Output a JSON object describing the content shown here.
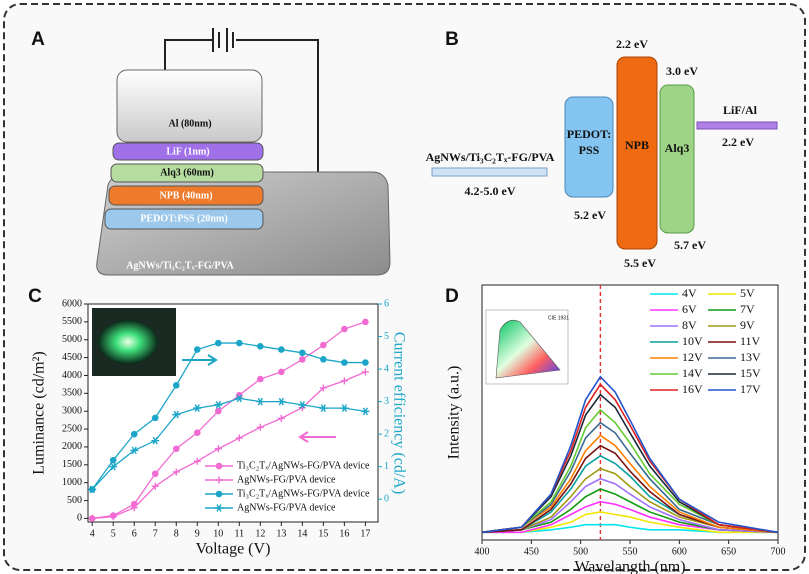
{
  "device_stack": {
    "panel": "A",
    "layers": [
      "Al (80nm)",
      "LiF (1nm)",
      "Alq3 (60nm)",
      "NPB (40nm)",
      "PEDOT:PSS (20nm)",
      "AgNWs/Ti₃C₂Tₓ-FG/PVA"
    ]
  },
  "energy_diagram": {
    "panel": "B",
    "electrode": "AgNWs/Ti₃C₂Tₓ-FG/PVA",
    "electrode_level": "4.2-5.0 eV",
    "pedot_label": [
      "PEDOT:",
      "PSS"
    ],
    "pedot_level": "5.2 eV",
    "npb_label": "NPB",
    "npb_lumo": "2.2 eV",
    "npb_homo": "5.5 eV",
    "alq3_label": "Alq3",
    "alq3_lumo": "3.0 eV",
    "alq3_homo": "5.7 eV",
    "cathode": "LiF/Al",
    "cathode_level": "2.2 eV"
  },
  "chart_data": [
    {
      "type": "line",
      "panel": "C",
      "xlabel": "Voltage (V)",
      "ylabel": "Luminance (cd/m²)",
      "y2label": "Current efficiency (cd/A)",
      "y2color": "#1ba6c8",
      "x": [
        4,
        5,
        6,
        7,
        8,
        9,
        10,
        11,
        12,
        13,
        14,
        15,
        16,
        17
      ],
      "xlim": [
        3.8,
        17.6
      ],
      "xticks": [
        4,
        5,
        6,
        7,
        8,
        9,
        10,
        11,
        12,
        13,
        14,
        15,
        16,
        17
      ],
      "ylim": [
        -100,
        6000
      ],
      "yticks": [
        0,
        500,
        1000,
        1500,
        2000,
        2500,
        3000,
        3500,
        4000,
        4500,
        5000,
        5500,
        6000
      ],
      "y2lim": [
        -0.7,
        6
      ],
      "y2ticks": [
        0,
        1,
        2,
        3,
        4,
        5,
        6
      ],
      "legend": "lower right",
      "series": [
        {
          "name": "Ti₃C₂Tₓ/AgNWs-FG/PVA device",
          "color": "#f26bd2",
          "marker": "circle",
          "axis": "y",
          "values": [
            0,
            80,
            400,
            1250,
            1950,
            2400,
            3000,
            3450,
            3900,
            4100,
            4450,
            4850,
            5300,
            5500
          ]
        },
        {
          "name": "AgNWs-FG/PVA device",
          "color": "#f26bd2",
          "marker": "plus",
          "axis": "y",
          "values": [
            0,
            50,
            300,
            900,
            1300,
            1600,
            1950,
            2250,
            2550,
            2800,
            3100,
            3650,
            3850,
            4100
          ]
        },
        {
          "name": "Ti₃C₂Tₓ/AgNWs-FG/PVA device",
          "color": "#1ba6c8",
          "marker": "circle",
          "axis": "y2",
          "values": [
            0.3,
            1.2,
            2.0,
            2.5,
            3.5,
            4.6,
            4.8,
            4.8,
            4.7,
            4.6,
            4.5,
            4.3,
            4.2,
            4.2
          ]
        },
        {
          "name": "AgNWs-FG/PVA device",
          "color": "#1ba6c8",
          "marker": "star",
          "axis": "y2",
          "values": [
            0.3,
            1.0,
            1.5,
            1.8,
            2.6,
            2.8,
            2.9,
            3.1,
            3.0,
            3.0,
            2.9,
            2.8,
            2.8,
            2.7
          ]
        }
      ]
    },
    {
      "type": "line",
      "panel": "D",
      "xlabel": "Wavelangth (nm)",
      "ylabel": "Intensity (a.u.)",
      "inset_label": "CIE 1931",
      "x": [
        400,
        440,
        470,
        490,
        505,
        520,
        535,
        550,
        570,
        600,
        640,
        700
      ],
      "xlim": [
        400,
        700
      ],
      "xticks": [
        400,
        450,
        500,
        550,
        600,
        650,
        700
      ],
      "ylim": [
        0,
        100
      ],
      "vline": 520,
      "vline_color": "#e03030",
      "legend": "upper right",
      "legend_columns": 2,
      "series": [
        {
          "name": "4V",
          "color": "#00e5ee",
          "values": [
            3,
            3,
            4,
            5,
            6,
            6,
            6,
            5,
            4,
            4,
            3,
            3
          ]
        },
        {
          "name": "5V",
          "color": "#f2e600",
          "values": [
            3,
            3,
            5,
            7,
            10,
            11,
            10,
            9,
            7,
            5,
            3,
            3
          ]
        },
        {
          "name": "6V",
          "color": "#ff33ff",
          "values": [
            3,
            3,
            6,
            10,
            13,
            15,
            14,
            12,
            9,
            6,
            4,
            3
          ]
        },
        {
          "name": "7V",
          "color": "#109a10",
          "values": [
            3,
            4,
            7,
            12,
            17,
            20,
            18,
            15,
            11,
            7,
            4,
            3
          ]
        },
        {
          "name": "8V",
          "color": "#a070ff",
          "values": [
            3,
            4,
            8,
            15,
            21,
            24,
            22,
            18,
            13,
            8,
            4,
            3
          ]
        },
        {
          "name": "9V",
          "color": "#a09a10",
          "values": [
            3,
            4,
            9,
            17,
            24,
            28,
            26,
            21,
            15,
            9,
            5,
            3
          ]
        },
        {
          "name": "10V",
          "color": "#0aa0a0",
          "values": [
            3,
            4,
            11,
            20,
            29,
            33,
            30,
            25,
            17,
            10,
            5,
            3
          ]
        },
        {
          "name": "11V",
          "color": "#7a1010",
          "values": [
            3,
            4,
            12,
            22,
            32,
            37,
            34,
            27,
            19,
            10,
            5,
            3
          ]
        },
        {
          "name": "12V",
          "color": "#ff8000",
          "values": [
            3,
            5,
            13,
            24,
            35,
            41,
            37,
            30,
            21,
            11,
            5,
            3
          ]
        },
        {
          "name": "13V",
          "color": "#3a6a90",
          "values": [
            3,
            5,
            14,
            27,
            40,
            46,
            42,
            34,
            24,
            12,
            6,
            3
          ]
        },
        {
          "name": "14V",
          "color": "#66cc33",
          "values": [
            3,
            5,
            15,
            29,
            44,
            51,
            46,
            38,
            26,
            14,
            6,
            3
          ]
        },
        {
          "name": "15V",
          "color": "#1a2a3a",
          "values": [
            3,
            5,
            17,
            33,
            49,
            57,
            52,
            42,
            29,
            15,
            6,
            3
          ]
        },
        {
          "name": "16V",
          "color": "#e02020",
          "values": [
            3,
            5,
            18,
            35,
            52,
            61,
            55,
            45,
            31,
            16,
            6,
            3
          ]
        },
        {
          "name": "17V",
          "color": "#2255cc",
          "values": [
            3,
            5,
            18,
            37,
            55,
            64,
            58,
            47,
            32,
            16,
            7,
            3
          ]
        }
      ]
    }
  ]
}
